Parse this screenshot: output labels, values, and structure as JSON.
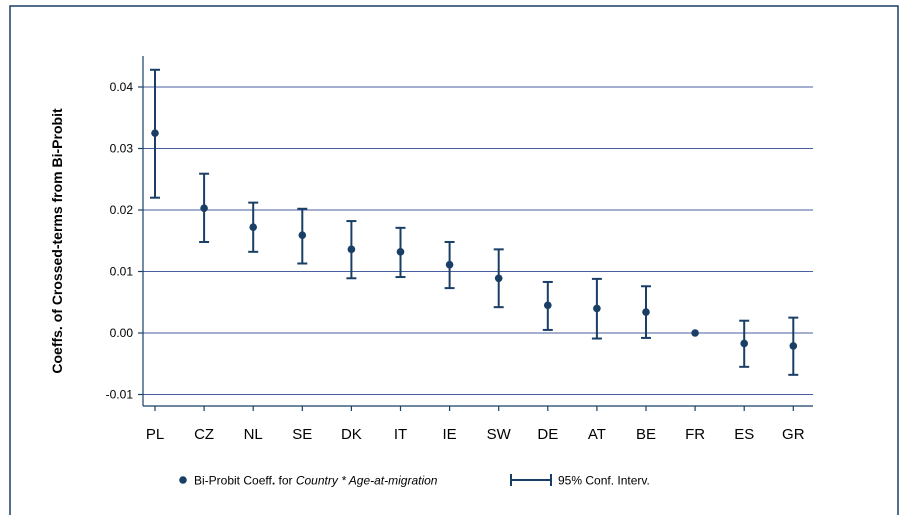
{
  "chart_data": {
    "type": "scatter",
    "title": "",
    "xlabel": "",
    "ylabel": "Coeffs. of Crossed-terms from Bi-Probit",
    "ylim": [
      -0.012,
      0.046
    ],
    "yticks": [
      "0.04",
      "0.03",
      "0.02",
      "0.01",
      "0.00",
      "-0.01"
    ],
    "ytick_values": [
      0.04,
      0.03,
      0.02,
      0.01,
      0.0,
      -0.01
    ],
    "grid": true,
    "legend_placement": "bottom",
    "categories": [
      "PL",
      "CZ",
      "NL",
      "SE",
      "DK",
      "IT",
      "IE",
      "SW",
      "DE",
      "AT",
      "BE",
      "FR",
      "ES",
      "GR"
    ],
    "series": [
      {
        "name_parts": [
          "Bi-Probit Coeff",
          ". ",
          "for ",
          "Country",
          " * ",
          "Age-at-migration"
        ],
        "values": [
          0.0325,
          0.0203,
          0.0172,
          0.0159,
          0.0136,
          0.0132,
          0.0111,
          0.0089,
          0.0045,
          0.004,
          0.0034,
          0.0,
          -0.0017,
          -0.0021
        ],
        "lower": [
          0.022,
          0.0148,
          0.0132,
          0.0113,
          0.0089,
          0.0091,
          0.0073,
          0.0042,
          0.0005,
          -0.0009,
          -0.0008,
          0.0,
          -0.0055,
          -0.0068
        ],
        "upper": [
          0.0428,
          0.0259,
          0.0212,
          0.0202,
          0.0182,
          0.0171,
          0.0148,
          0.0136,
          0.0083,
          0.0088,
          0.0076,
          0.0,
          0.002,
          0.0025
        ]
      }
    ],
    "ci_legend_label": "95% Conf. Interv.",
    "colors": {
      "marker": "#1a3f66",
      "grid": "#4a5fa0",
      "axis": "#1a3f66",
      "frame": "#1a3f66"
    }
  }
}
